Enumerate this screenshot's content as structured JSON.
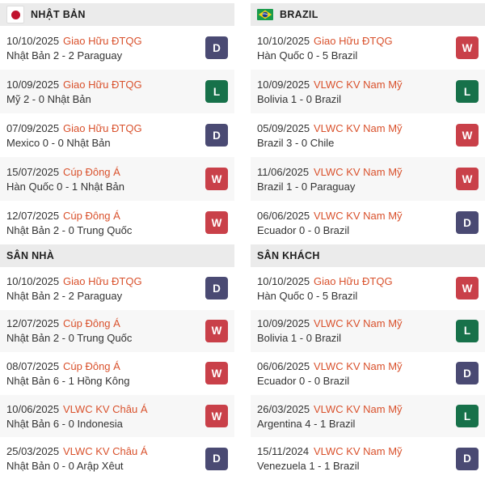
{
  "theme": {
    "header_bg": "#ebebeb",
    "row_bg": "#ffffff",
    "row_alt_bg": "#f7f7f7",
    "league_color": "#d9512c",
    "text_color": "#333333",
    "badge_colors": {
      "W": "#c94049",
      "L": "#17714a",
      "D": "#4a4a73"
    },
    "badge_text_color": "#ffffff"
  },
  "columns": [
    {
      "team": "NHẬT BẢN",
      "flag_icon": "japan-flag-icon",
      "sections": [
        {
          "type": "team-header",
          "matches": [
            {
              "date": "10/10/2025",
              "league": "Giao Hữu ĐTQG",
              "result": "Nhật Bản 2 - 2 Paraguay",
              "outcome": "D"
            },
            {
              "date": "10/09/2025",
              "league": "Giao Hữu ĐTQG",
              "result": "Mỹ 2 - 0 Nhật Bản",
              "outcome": "L"
            },
            {
              "date": "07/09/2025",
              "league": "Giao Hữu ĐTQG",
              "result": "Mexico 0 - 0 Nhật Bản",
              "outcome": "D"
            },
            {
              "date": "15/07/2025",
              "league": "Cúp Đông Á",
              "result": "Hàn Quốc 0 - 1 Nhật Bản",
              "outcome": "W"
            },
            {
              "date": "12/07/2025",
              "league": "Cúp Đông Á",
              "result": "Nhật Bản 2 - 0 Trung Quốc",
              "outcome": "W"
            }
          ]
        },
        {
          "type": "section-header",
          "title": "SÂN NHÀ",
          "matches": [
            {
              "date": "10/10/2025",
              "league": "Giao Hữu ĐTQG",
              "result": "Nhật Bản 2 - 2 Paraguay",
              "outcome": "D"
            },
            {
              "date": "12/07/2025",
              "league": "Cúp Đông Á",
              "result": "Nhật Bản 2 - 0 Trung Quốc",
              "outcome": "W"
            },
            {
              "date": "08/07/2025",
              "league": "Cúp Đông Á",
              "result": "Nhật Bản 6 - 1 Hồng Kông",
              "outcome": "W"
            },
            {
              "date": "10/06/2025",
              "league": "VLWC KV Châu Á",
              "result": "Nhật Bản 6 - 0 Indonesia",
              "outcome": "W"
            },
            {
              "date": "25/03/2025",
              "league": "VLWC KV Châu Á",
              "result": "Nhật Bản 0 - 0 Arập Xêut",
              "outcome": "D"
            }
          ]
        }
      ]
    },
    {
      "team": "BRAZIL",
      "flag_icon": "brazil-flag-icon",
      "sections": [
        {
          "type": "team-header",
          "matches": [
            {
              "date": "10/10/2025",
              "league": "Giao Hữu ĐTQG",
              "result": "Hàn Quốc 0 - 5 Brazil",
              "outcome": "W"
            },
            {
              "date": "10/09/2025",
              "league": "VLWC KV Nam Mỹ",
              "result": "Bolivia 1 - 0 Brazil",
              "outcome": "L"
            },
            {
              "date": "05/09/2025",
              "league": "VLWC KV Nam Mỹ",
              "result": "Brazil 3 - 0 Chile",
              "outcome": "W"
            },
            {
              "date": "11/06/2025",
              "league": "VLWC KV Nam Mỹ",
              "result": "Brazil 1 - 0 Paraguay",
              "outcome": "W"
            },
            {
              "date": "06/06/2025",
              "league": "VLWC KV Nam Mỹ",
              "result": "Ecuador 0 - 0 Brazil",
              "outcome": "D"
            }
          ]
        },
        {
          "type": "section-header",
          "title": "SÂN KHÁCH",
          "matches": [
            {
              "date": "10/10/2025",
              "league": "Giao Hữu ĐTQG",
              "result": "Hàn Quốc 0 - 5 Brazil",
              "outcome": "W"
            },
            {
              "date": "10/09/2025",
              "league": "VLWC KV Nam Mỹ",
              "result": "Bolivia 1 - 0 Brazil",
              "outcome": "L"
            },
            {
              "date": "06/06/2025",
              "league": "VLWC KV Nam Mỹ",
              "result": "Ecuador 0 - 0 Brazil",
              "outcome": "D"
            },
            {
              "date": "26/03/2025",
              "league": "VLWC KV Nam Mỹ",
              "result": "Argentina 4 - 1 Brazil",
              "outcome": "L"
            },
            {
              "date": "15/11/2024",
              "league": "VLWC KV Nam Mỹ",
              "result": "Venezuela 1 - 1 Brazil",
              "outcome": "D"
            }
          ]
        }
      ]
    }
  ]
}
